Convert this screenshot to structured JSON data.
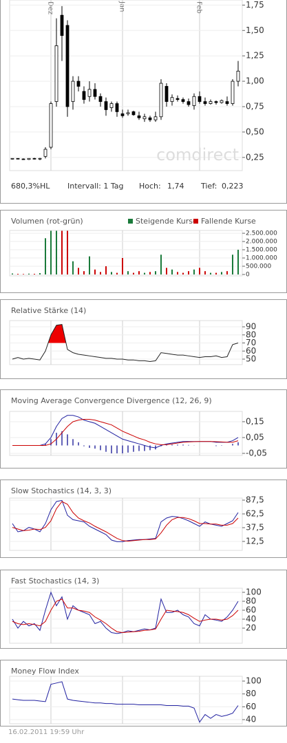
{
  "chart_data": [
    {
      "type": "candlestick",
      "categories": [
        null,
        null,
        null,
        null,
        null,
        null,
        null,
        "Dez",
        null,
        null,
        null,
        null,
        null,
        null,
        null,
        null,
        null,
        null,
        null,
        null,
        "Jan",
        null,
        null,
        null,
        null,
        null,
        null,
        null,
        null,
        null,
        null,
        null,
        null,
        null,
        "Feb",
        null,
        null,
        null,
        null,
        null,
        null,
        null
      ],
      "open": [
        0.235,
        0.24,
        0.235,
        0.23,
        0.24,
        0.235,
        0.26,
        0.35,
        0.8,
        1.65,
        1.55,
        0.8,
        1.0,
        0.9,
        0.85,
        0.92,
        0.85,
        0.8,
        0.74,
        0.78,
        0.68,
        0.68,
        0.7,
        0.66,
        0.63,
        0.64,
        0.62,
        0.65,
        0.95,
        0.8,
        0.83,
        0.82,
        0.8,
        0.76,
        0.85,
        0.8,
        0.78,
        0.8,
        0.79,
        0.8,
        0.78,
        1.0
      ],
      "high": [
        0.24,
        0.24,
        0.24,
        0.24,
        0.245,
        0.245,
        0.35,
        0.8,
        1.62,
        1.74,
        1.6,
        1.05,
        1.05,
        0.95,
        1.0,
        0.98,
        0.88,
        0.84,
        0.8,
        0.8,
        0.72,
        0.72,
        0.71,
        0.7,
        0.68,
        0.66,
        0.7,
        1.02,
        0.98,
        0.87,
        0.86,
        0.84,
        0.83,
        0.88,
        0.9,
        0.84,
        0.82,
        0.81,
        0.82,
        0.85,
        1.02,
        1.2
      ],
      "low": [
        0.23,
        0.235,
        0.23,
        0.225,
        0.23,
        0.223,
        0.24,
        0.33,
        0.75,
        1.2,
        0.65,
        0.72,
        0.9,
        0.78,
        0.8,
        0.82,
        0.75,
        0.66,
        0.7,
        0.65,
        0.64,
        0.66,
        0.66,
        0.62,
        0.6,
        0.6,
        0.6,
        0.62,
        0.75,
        0.76,
        0.8,
        0.78,
        0.75,
        0.72,
        0.78,
        0.76,
        0.77,
        0.77,
        0.78,
        0.76,
        0.76,
        0.95
      ],
      "close": [
        0.24,
        0.235,
        0.23,
        0.24,
        0.235,
        0.24,
        0.33,
        0.78,
        1.35,
        1.45,
        0.75,
        1.0,
        0.95,
        0.82,
        0.92,
        0.85,
        0.8,
        0.72,
        0.78,
        0.7,
        0.66,
        0.69,
        0.67,
        0.64,
        0.65,
        0.62,
        0.65,
        0.98,
        0.8,
        0.84,
        0.82,
        0.8,
        0.77,
        0.85,
        0.8,
        0.78,
        0.8,
        0.79,
        0.81,
        0.78,
        1.0,
        1.1
      ],
      "ylim": [
        0.12,
        1.8
      ],
      "yticks": [
        {
          "value": 0.25,
          "label": "0,25"
        },
        {
          "value": 0.5,
          "label": "0,50"
        },
        {
          "value": 0.75,
          "label": "0,75"
        },
        {
          "value": 1.0,
          "label": "1,00"
        },
        {
          "value": 1.25,
          "label": "1,25"
        },
        {
          "value": 1.5,
          "label": "1,50"
        },
        {
          "value": 1.75,
          "label": "1,75"
        }
      ],
      "watermark": "comdirect",
      "info": {
        "range": "680,3%HL",
        "interval": "Intervall: 1 Tag",
        "high_label": "Hoch:",
        "high": "1,74",
        "low_label": "Tief:",
        "low": "0,223"
      }
    },
    {
      "type": "bar",
      "title": "Volumen (rot-grün)",
      "series": [
        {
          "name": "Steigende Kurse",
          "color": "#1a7a3a",
          "values": [
            60000,
            null,
            null,
            50000,
            null,
            80000,
            2200000,
            2650000,
            2650000,
            null,
            null,
            800000,
            null,
            null,
            1100000,
            null,
            null,
            null,
            150000,
            null,
            null,
            200000,
            null,
            null,
            100000,
            null,
            200000,
            1200000,
            null,
            300000,
            null,
            null,
            null,
            300000,
            null,
            null,
            100000,
            null,
            150000,
            null,
            1200000,
            1500000
          ]
        },
        {
          "name": "Fallende Kurse",
          "color": "#cc0000",
          "values": [
            null,
            40000,
            30000,
            null,
            40000,
            null,
            null,
            null,
            null,
            2650000,
            2650000,
            null,
            400000,
            200000,
            null,
            300000,
            150000,
            500000,
            null,
            100000,
            1000000,
            null,
            100000,
            200000,
            null,
            150000,
            null,
            null,
            400000,
            null,
            150000,
            100000,
            200000,
            null,
            400000,
            200000,
            null,
            100000,
            null,
            200000,
            null,
            null
          ]
        }
      ],
      "ylim": [
        -85000,
        2670000
      ],
      "yticks": [
        0,
        {
          "value": 500000,
          "label": "500.000"
        },
        {
          "value": 1000000,
          "label": "1.000.000"
        },
        {
          "value": 1500000,
          "label": "1.500.000"
        },
        {
          "value": 2000000,
          "label": "2.000.000"
        },
        {
          "value": 2500000,
          "label": "2.500.000"
        }
      ]
    },
    {
      "type": "line",
      "title": "Relative Stärke (14)",
      "fill_above": 70,
      "fill_color": "#ee0000",
      "series": [
        {
          "color": "#222222",
          "values": [
            50,
            52,
            50,
            51,
            50,
            49,
            60,
            80,
            92,
            93,
            62,
            58,
            56,
            55,
            54,
            53,
            52,
            51,
            51,
            50,
            50,
            49,
            49,
            48,
            48,
            47,
            48,
            58,
            57,
            56,
            55,
            55,
            54,
            53,
            52,
            53,
            53,
            54,
            52,
            53,
            68,
            70
          ]
        }
      ],
      "ylim": [
        43.2,
        97.7
      ],
      "yticks": [
        50,
        60,
        70,
        80,
        90
      ]
    },
    {
      "type": "line",
      "title": "Moving Average Convergence Divergence (12, 26, 9)",
      "bars": {
        "color": "#3030a0",
        "values": [
          0,
          0,
          0,
          0,
          0,
          0,
          0.01,
          0.04,
          0.08,
          0.09,
          0.07,
          0.04,
          0.02,
          -0.005,
          -0.015,
          -0.02,
          -0.03,
          -0.04,
          -0.05,
          -0.05,
          -0.05,
          -0.045,
          -0.04,
          -0.035,
          -0.035,
          -0.03,
          -0.025,
          -0.005,
          0.005,
          0.005,
          0.005,
          0.005,
          0.003,
          0.001,
          0,
          0,
          0,
          -0.004,
          -0.002,
          0,
          0.01,
          0.02
        ]
      },
      "series": [
        {
          "color": "#2020a0",
          "values": [
            0,
            0,
            0,
            0,
            0,
            0,
            0.01,
            0.05,
            0.12,
            0.17,
            0.19,
            0.19,
            0.18,
            0.16,
            0.15,
            0.14,
            0.12,
            0.1,
            0.08,
            0.06,
            0.04,
            0.03,
            0.02,
            0.01,
            0,
            -0.01,
            -0.015,
            0.0,
            0.01,
            0.015,
            0.02,
            0.025,
            0.025,
            0.025,
            0.025,
            0.025,
            0.025,
            0.02,
            0.02,
            0.02,
            0.03,
            0.05
          ]
        },
        {
          "color": "#cc0000",
          "values": [
            0,
            0,
            0,
            0,
            0,
            0,
            0,
            0.01,
            0.04,
            0.08,
            0.12,
            0.15,
            0.16,
            0.165,
            0.165,
            0.16,
            0.15,
            0.14,
            0.13,
            0.11,
            0.09,
            0.075,
            0.06,
            0.045,
            0.035,
            0.02,
            0.01,
            0.005,
            0.005,
            0.01,
            0.015,
            0.02,
            0.022,
            0.024,
            0.025,
            0.025,
            0.025,
            0.024,
            0.022,
            0.02,
            0.02,
            0.03
          ]
        }
      ],
      "ylim": [
        -0.063,
        0.215
      ],
      "yticks": [
        {
          "value": -0.05,
          "label": "-0,05"
        },
        {
          "value": 0.05,
          "label": "0,05"
        },
        {
          "value": 0.15,
          "label": "0,15"
        }
      ]
    },
    {
      "type": "line",
      "title": "Slow Stochastics (14, 3, 3)",
      "series": [
        {
          "color": "#2020a0",
          "values": [
            45,
            30,
            32,
            38,
            35,
            30,
            45,
            70,
            85,
            87,
            60,
            52,
            50,
            48,
            40,
            35,
            30,
            25,
            15,
            12,
            12,
            14,
            15,
            16,
            16,
            17,
            18,
            48,
            55,
            58,
            57,
            54,
            50,
            45,
            40,
            48,
            44,
            42,
            40,
            45,
            50,
            65
          ]
        },
        {
          "color": "#cc0000",
          "values": [
            38,
            35,
            32,
            33,
            35,
            34,
            38,
            50,
            72,
            85,
            80,
            65,
            55,
            50,
            46,
            40,
            35,
            30,
            24,
            18,
            14,
            13,
            14,
            15,
            16,
            16,
            17,
            28,
            42,
            52,
            56,
            56,
            54,
            50,
            45,
            45,
            44,
            44,
            42,
            42,
            45,
            55
          ]
        }
      ],
      "ylim": [
        -3.75,
        91.25
      ],
      "yticks": [
        {
          "value": 12.5,
          "label": "12,5"
        },
        {
          "value": 37.5,
          "label": "37,5"
        },
        {
          "value": 62.5,
          "label": "62,5"
        },
        {
          "value": 87.5,
          "label": "87,5"
        }
      ]
    },
    {
      "type": "line",
      "title": "Fast Stochastics (14, 3)",
      "series": [
        {
          "color": "#2020a0",
          "values": [
            40,
            20,
            35,
            25,
            30,
            15,
            60,
            100,
            70,
            90,
            40,
            70,
            60,
            55,
            50,
            30,
            35,
            20,
            10,
            8,
            10,
            14,
            12,
            15,
            18,
            16,
            20,
            85,
            55,
            55,
            60,
            50,
            45,
            30,
            25,
            50,
            40,
            38,
            35,
            45,
            60,
            80
          ]
        },
        {
          "color": "#cc0000",
          "values": [
            35,
            30,
            28,
            30,
            28,
            25,
            35,
            60,
            80,
            85,
            65,
            65,
            60,
            58,
            55,
            45,
            38,
            30,
            20,
            12,
            10,
            11,
            12,
            13,
            15,
            16,
            18,
            40,
            60,
            58,
            57,
            55,
            50,
            42,
            35,
            38,
            40,
            40,
            38,
            40,
            48,
            60
          ]
        }
      ],
      "ylim": [
        -13.8,
        109.2
      ],
      "yticks": [
        20,
        40,
        60,
        80,
        100
      ]
    },
    {
      "type": "line",
      "title": "Money Flow Index",
      "series": [
        {
          "color": "#2020a0",
          "values": [
            72,
            71,
            70,
            70,
            70,
            69,
            68,
            95,
            97,
            99,
            72,
            70,
            69,
            68,
            67,
            66,
            66,
            65,
            65,
            64,
            64,
            64,
            64,
            63,
            63,
            63,
            63,
            63,
            62,
            62,
            62,
            61,
            61,
            58,
            36,
            48,
            42,
            48,
            45,
            47,
            50,
            62
          ]
        }
      ],
      "ylim": [
        33.6,
        107.5
      ],
      "yticks": [
        40,
        60,
        80,
        100
      ]
    }
  ],
  "footer": "16.02.2011 19:59 Uhr"
}
